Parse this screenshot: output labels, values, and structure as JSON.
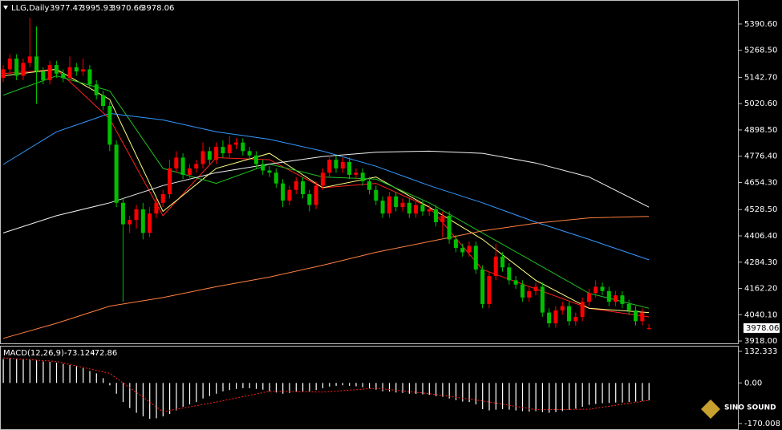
{
  "chart_data": [
    {
      "type": "candlestick",
      "symbol": "LLG,Daily",
      "up_color": "#ff0000",
      "down_color": "#00c000",
      "ylim": [
        3907,
        5491
      ],
      "yticks": [
        {
          "value": 5390.6,
          "label": "5390.60"
        },
        {
          "value": 5268.5,
          "label": "5268.50"
        },
        {
          "value": 5142.7,
          "label": "5142.70"
        },
        {
          "value": 5020.6,
          "label": "5020.60"
        },
        {
          "value": 4898.5,
          "label": "4898.50"
        },
        {
          "value": 4776.4,
          "label": "4776.40"
        },
        {
          "value": 4654.3,
          "label": "4654.30"
        },
        {
          "value": 4528.5,
          "label": "4528.50"
        },
        {
          "value": 4406.4,
          "label": "4406.40"
        },
        {
          "value": 4284.3,
          "label": "4284.30"
        },
        {
          "value": 4162.2,
          "label": "4162.20"
        },
        {
          "value": 4040.1,
          "label": "4040.10"
        },
        {
          "value": 3918,
          "label": "3918.00"
        }
      ],
      "open": [
        5140,
        5180,
        5230,
        5150,
        5210,
        5240,
        5170,
        5130,
        5200,
        5160,
        5140,
        5190,
        5170,
        5180,
        5110,
        5060,
        5010,
        4830,
        4560,
        4460,
        4480,
        4530,
        4420,
        4510,
        4560,
        4600,
        4720,
        4770,
        4690,
        4720,
        4740,
        4800,
        4760,
        4820,
        4790,
        4830,
        4840,
        4800,
        4780,
        4740,
        4710,
        4700,
        4650,
        4570,
        4620,
        4660,
        4600,
        4550,
        4640,
        4700,
        4760,
        4720,
        4750,
        4690,
        4700,
        4660,
        4620,
        4570,
        4510,
        4590,
        4540,
        4560,
        4510,
        4550,
        4520,
        4530,
        4470,
        4500,
        4390,
        4350,
        4330,
        4360,
        4250,
        4090,
        4220,
        4310,
        4260,
        4200,
        4180,
        4120,
        4150,
        4170,
        4050,
        4000,
        4060,
        4080,
        4010,
        4030,
        4100,
        4140,
        4170,
        4150,
        4100,
        4130,
        4090,
        4060,
        4010,
        3977.47
      ],
      "high": [
        5200,
        5250,
        5250,
        5230,
        5420,
        5380,
        5190,
        5220,
        5220,
        5180,
        5240,
        5210,
        5230,
        5200,
        5130,
        5080,
        5030,
        4850,
        4580,
        4500,
        4550,
        4560,
        4540,
        4580,
        4620,
        4760,
        4800,
        4790,
        4740,
        4760,
        4840,
        4820,
        4840,
        4850,
        4870,
        4860,
        4860,
        4820,
        4800,
        4760,
        4730,
        4720,
        4670,
        4640,
        4680,
        4680,
        4620,
        4660,
        4720,
        4780,
        4780,
        4770,
        4770,
        4720,
        4720,
        4680,
        4640,
        4590,
        4610,
        4610,
        4580,
        4580,
        4570,
        4570,
        4550,
        4550,
        4520,
        4520,
        4410,
        4370,
        4380,
        4380,
        4270,
        4240,
        4370,
        4330,
        4280,
        4220,
        4200,
        4170,
        4190,
        4190,
        4070,
        4080,
        4100,
        4100,
        4050,
        4120,
        4160,
        4200,
        4190,
        4170,
        4150,
        4150,
        4110,
        4080,
        4070,
        3995.93
      ],
      "low": [
        5120,
        5160,
        5130,
        5130,
        5190,
        5020,
        5110,
        5110,
        5140,
        5120,
        5120,
        5150,
        5150,
        5090,
        5040,
        4990,
        4800,
        4540,
        4100,
        4420,
        4440,
        4390,
        4400,
        4490,
        4540,
        4580,
        4700,
        4670,
        4670,
        4700,
        4720,
        4740,
        4740,
        4770,
        4770,
        4810,
        4780,
        4760,
        4720,
        4690,
        4680,
        4630,
        4540,
        4550,
        4600,
        4580,
        4520,
        4530,
        4620,
        4680,
        4700,
        4700,
        4670,
        4670,
        4640,
        4600,
        4550,
        4490,
        4490,
        4520,
        4520,
        4490,
        4490,
        4500,
        4500,
        4450,
        4400,
        4370,
        4330,
        4310,
        4310,
        4230,
        4070,
        4070,
        4200,
        4240,
        4180,
        4160,
        4100,
        4100,
        4130,
        4030,
        3980,
        3980,
        4040,
        3990,
        3990,
        4010,
        4080,
        4120,
        4130,
        4080,
        4080,
        4070,
        4040,
        3990,
        3990,
        3970.66
      ],
      "close": [
        5180,
        5230,
        5150,
        5210,
        5240,
        5170,
        5130,
        5200,
        5160,
        5140,
        5190,
        5170,
        5180,
        5110,
        5060,
        5010,
        4830,
        4560,
        4460,
        4480,
        4530,
        4420,
        4510,
        4560,
        4600,
        4720,
        4770,
        4690,
        4720,
        4740,
        4800,
        4760,
        4820,
        4790,
        4830,
        4840,
        4800,
        4780,
        4740,
        4710,
        4700,
        4650,
        4570,
        4620,
        4660,
        4600,
        4550,
        4640,
        4700,
        4760,
        4720,
        4750,
        4690,
        4700,
        4660,
        4620,
        4570,
        4510,
        4590,
        4540,
        4560,
        4510,
        4550,
        4520,
        4530,
        4470,
        4500,
        4390,
        4350,
        4330,
        4360,
        4250,
        4090,
        4220,
        4310,
        4260,
        4200,
        4180,
        4120,
        4150,
        4170,
        4050,
        4000,
        4060,
        4080,
        4010,
        4030,
        4100,
        4140,
        4170,
        4150,
        4100,
        4130,
        4090,
        4060,
        4010,
        4050,
        3978.06
      ],
      "series": [
        {
          "color": "#ff2020",
          "x": [
            0,
            8,
            16,
            24,
            32,
            40,
            48,
            56,
            64,
            72,
            80,
            88,
            97
          ],
          "values": [
            5160,
            5180,
            4950,
            4500,
            4770,
            4760,
            4630,
            4650,
            4540,
            4250,
            4160,
            4070,
            4030
          ]
        },
        {
          "color": "#ffff80",
          "x": [
            0,
            8,
            16,
            24,
            32,
            40,
            48,
            56,
            64,
            72,
            80,
            88,
            97
          ],
          "values": [
            5150,
            5180,
            5040,
            4520,
            4720,
            4790,
            4630,
            4680,
            4540,
            4390,
            4200,
            4070,
            4050
          ]
        },
        {
          "color": "#20c020",
          "x": [
            0,
            8,
            16,
            24,
            32,
            40,
            48,
            56,
            64,
            72,
            80,
            88,
            97
          ],
          "values": [
            5060,
            5150,
            5080,
            4720,
            4650,
            4740,
            4680,
            4670,
            4560,
            4420,
            4280,
            4140,
            4070
          ]
        },
        {
          "color": "#3399ff",
          "x": [
            0,
            8,
            16,
            24,
            32,
            40,
            48,
            56,
            64,
            72,
            80,
            88,
            97
          ],
          "values": [
            4738,
            4890,
            4975,
            4945,
            4890,
            4855,
            4800,
            4730,
            4640,
            4560,
            4470,
            4390,
            4295
          ]
        },
        {
          "color": "#f0f0f0",
          "x": [
            0,
            8,
            16,
            24,
            32,
            40,
            48,
            56,
            64,
            72,
            80,
            88,
            97
          ],
          "values": [
            4420,
            4500,
            4560,
            4640,
            4700,
            4740,
            4775,
            4795,
            4800,
            4790,
            4745,
            4680,
            4540
          ]
        },
        {
          "color": "#ff8040",
          "x": [
            0,
            8,
            16,
            24,
            32,
            40,
            48,
            56,
            64,
            72,
            80,
            88,
            97
          ],
          "values": [
            3930,
            4000,
            4080,
            4120,
            4170,
            4215,
            4270,
            4330,
            4380,
            4430,
            4465,
            4490,
            4497
          ]
        }
      ]
    },
    {
      "type": "macd",
      "title": "MACD(12,26,9)",
      "bar_color": "#ffffff",
      "signal_color": "#ff2020",
      "ylim": [
        -187,
        149
      ],
      "yticks": [
        132.333,
        {
          "value": 0,
          "label": "0.00"
        },
        -170.008
      ],
      "values": [
        100,
        105,
        100,
        98,
        100,
        95,
        90,
        88,
        85,
        80,
        75,
        70,
        62,
        50,
        40,
        20,
        -10,
        -45,
        -80,
        -105,
        -125,
        -140,
        -150,
        -148,
        -140,
        -130,
        -115,
        -100,
        -90,
        -80,
        -65,
        -55,
        -45,
        -35,
        -30,
        -25,
        -22,
        -22,
        -25,
        -28,
        -35,
        -40,
        -45,
        -42,
        -38,
        -35,
        -35,
        -30,
        -22,
        -15,
        -12,
        -10,
        -12,
        -14,
        -18,
        -22,
        -28,
        -35,
        -36,
        -40,
        -42,
        -45,
        -46,
        -48,
        -50,
        -55,
        -58,
        -65,
        -72,
        -78,
        -80,
        -90,
        -110,
        -115,
        -112,
        -110,
        -112,
        -115,
        -118,
        -120,
        -118,
        -122,
        -125,
        -122,
        -118,
        -112,
        -108,
        -100,
        -92,
        -88,
        -85,
        -84,
        -82,
        -82,
        -80,
        -78,
        -75,
        -73.124
      ],
      "signal": {
        "x": [
          0,
          8,
          16,
          24,
          32,
          40,
          48,
          56,
          64,
          72,
          80,
          88,
          97
        ],
        "values": [
          105,
          90,
          40,
          -120,
          -80,
          -35,
          -38,
          -22,
          -45,
          -75,
          -112,
          -110,
          -72.86
        ]
      }
    },
    {
      "type": "logo",
      "text": "SINO SOUND"
    }
  ]
}
